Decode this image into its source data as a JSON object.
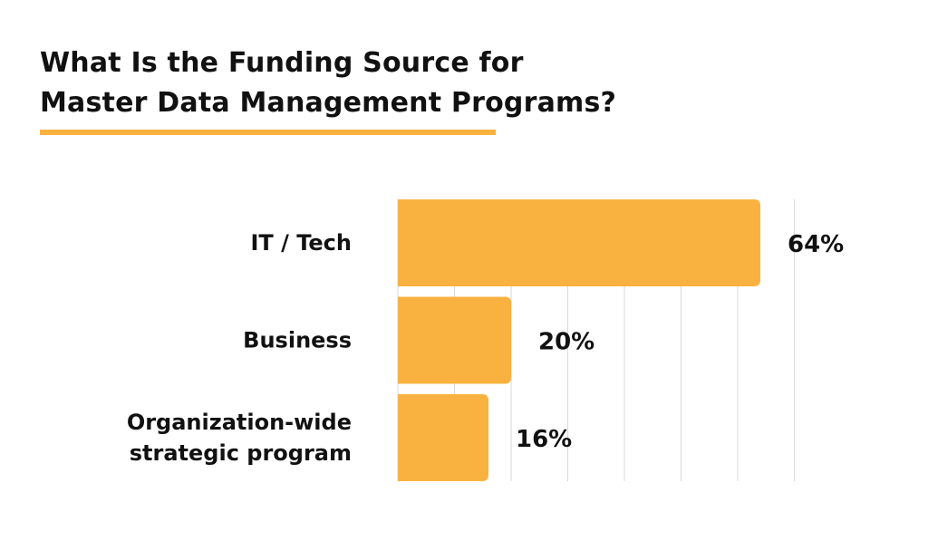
{
  "title": {
    "line1": "What Is the Funding Source for",
    "line2": "Master Data Management Programs?"
  },
  "colors": {
    "bar": "#f9b240",
    "accent_underline": "#f9b240",
    "grid": "#d9d9d9",
    "text": "#111111"
  },
  "chart_data": {
    "type": "bar",
    "orientation": "horizontal",
    "categories": [
      [
        "IT / Tech"
      ],
      [
        "Business"
      ],
      [
        "Organization-wide",
        "strategic program"
      ]
    ],
    "values": [
      64,
      20,
      16
    ],
    "value_labels": [
      "64%",
      "20%",
      "16%"
    ],
    "xlim": [
      0,
      70
    ],
    "grid": true,
    "legend": "none"
  }
}
